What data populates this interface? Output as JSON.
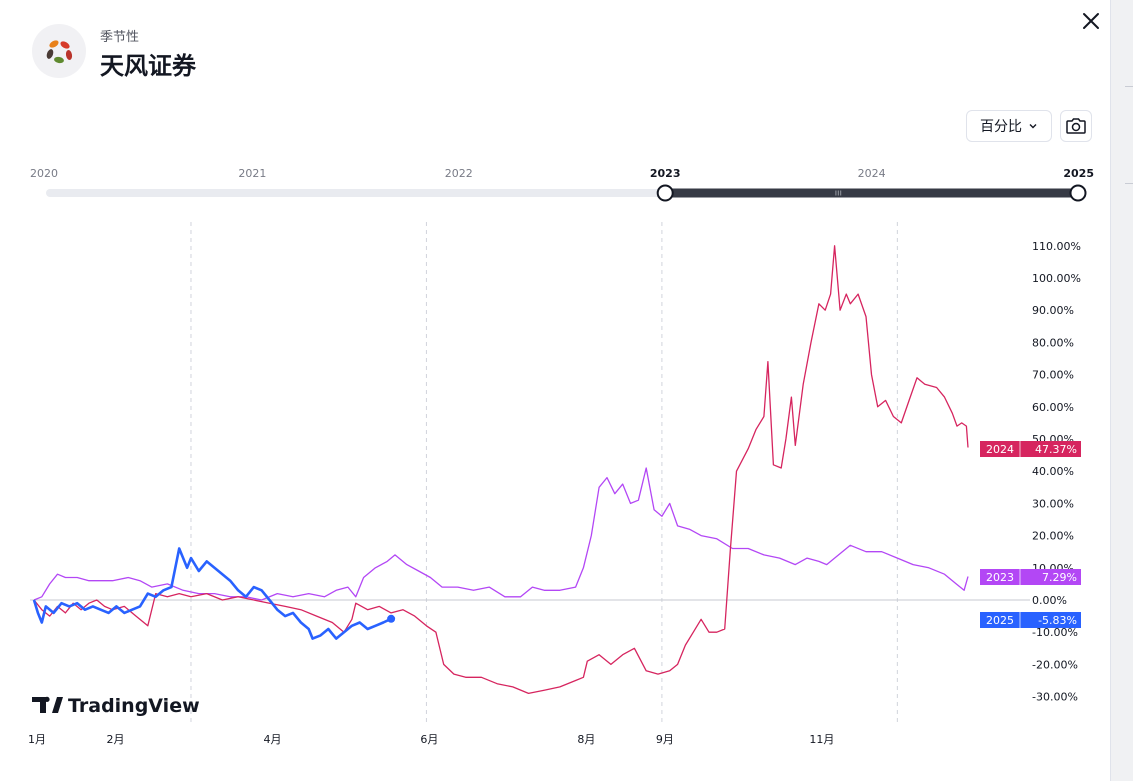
{
  "header": {
    "subtitle": "季节性",
    "title": "天风证券",
    "logo_icon": "flower-logo-icon",
    "close_icon": "close-icon"
  },
  "toolbar": {
    "scale_label": "百分比",
    "scale_icon": "chevron-down-icon",
    "snapshot_icon": "camera-icon"
  },
  "range_selector": {
    "years": [
      "2020",
      "2021",
      "2022",
      "2023",
      "2024",
      "2025"
    ],
    "selected": [
      "2023",
      "2025"
    ]
  },
  "watermark": "TradingView",
  "colors": {
    "2024": "#d6255f",
    "2023": "#b347f5",
    "2025": "#2962ff",
    "grid": "#d1d4dc",
    "slider": "#363a45"
  },
  "chart_data": {
    "type": "line",
    "title": "",
    "xlabel": "",
    "ylabel": "",
    "ylim": [
      -33,
      114
    ],
    "yticks": [
      -30,
      -20,
      -10,
      0,
      10,
      20,
      30,
      40,
      50,
      60,
      70,
      80,
      90,
      100,
      110
    ],
    "ytick_labels": [
      "-30.00%",
      "-20.00%",
      "-10.00%",
      "0.00%",
      "10.00%",
      "20.00%",
      "30.00%",
      "40.00%",
      "50.00%",
      "60.00%",
      "70.00%",
      "80.00%",
      "90.00%",
      "100.00%",
      "110.00%"
    ],
    "xlim": [
      1.0,
      12.9
    ],
    "month_ticks": [
      {
        "x": 1.0,
        "label": "1月"
      },
      {
        "x": 2.0,
        "label": "2月"
      },
      {
        "x": 4.0,
        "label": "4月"
      },
      {
        "x": 6.0,
        "label": "6月"
      },
      {
        "x": 8.0,
        "label": "8月"
      },
      {
        "x": 9.0,
        "label": "9月"
      },
      {
        "x": 11.0,
        "label": "11月"
      }
    ],
    "gridlines_x": [
      3.0,
      6.0,
      9.0,
      12.0
    ],
    "series": [
      {
        "name": "2024",
        "end_label": "47.37%",
        "points": [
          [
            1.0,
            0
          ],
          [
            1.1,
            -3
          ],
          [
            1.2,
            -5
          ],
          [
            1.3,
            -2
          ],
          [
            1.4,
            -4
          ],
          [
            1.5,
            -1
          ],
          [
            1.6,
            -3
          ],
          [
            1.7,
            -1
          ],
          [
            1.8,
            0
          ],
          [
            1.9,
            -2
          ],
          [
            2.0,
            -3
          ],
          [
            2.15,
            -2
          ],
          [
            2.3,
            -5
          ],
          [
            2.45,
            -8
          ],
          [
            2.55,
            2
          ],
          [
            2.7,
            1
          ],
          [
            2.85,
            2
          ],
          [
            3.0,
            1
          ],
          [
            3.2,
            2
          ],
          [
            3.4,
            0
          ],
          [
            3.6,
            1
          ],
          [
            3.8,
            0
          ],
          [
            4.0,
            -1
          ],
          [
            4.2,
            -2
          ],
          [
            4.4,
            -3
          ],
          [
            4.6,
            -5
          ],
          [
            4.8,
            -7
          ],
          [
            4.95,
            -10
          ],
          [
            5.05,
            -6
          ],
          [
            5.1,
            -1
          ],
          [
            5.25,
            -3
          ],
          [
            5.4,
            -2
          ],
          [
            5.55,
            -4
          ],
          [
            5.7,
            -3
          ],
          [
            5.85,
            -5
          ],
          [
            6.0,
            -8
          ],
          [
            6.12,
            -10
          ],
          [
            6.22,
            -20
          ],
          [
            6.35,
            -23
          ],
          [
            6.5,
            -24
          ],
          [
            6.7,
            -24
          ],
          [
            6.9,
            -26
          ],
          [
            7.1,
            -27
          ],
          [
            7.3,
            -29
          ],
          [
            7.5,
            -28
          ],
          [
            7.7,
            -27
          ],
          [
            7.9,
            -25
          ],
          [
            8.0,
            -24
          ],
          [
            8.05,
            -19
          ],
          [
            8.2,
            -17
          ],
          [
            8.35,
            -20
          ],
          [
            8.5,
            -17
          ],
          [
            8.65,
            -15
          ],
          [
            8.8,
            -22
          ],
          [
            8.95,
            -23
          ],
          [
            9.1,
            -22
          ],
          [
            9.2,
            -20
          ],
          [
            9.3,
            -14
          ],
          [
            9.4,
            -10
          ],
          [
            9.5,
            -6
          ],
          [
            9.6,
            -10
          ],
          [
            9.7,
            -10
          ],
          [
            9.8,
            -9
          ],
          [
            9.87,
            15
          ],
          [
            9.95,
            40
          ],
          [
            10.1,
            47
          ],
          [
            10.2,
            53
          ],
          [
            10.3,
            57
          ],
          [
            10.35,
            74
          ],
          [
            10.42,
            42
          ],
          [
            10.52,
            41
          ],
          [
            10.58,
            50
          ],
          [
            10.65,
            63
          ],
          [
            10.7,
            48
          ],
          [
            10.8,
            67
          ],
          [
            10.9,
            80
          ],
          [
            11.0,
            92
          ],
          [
            11.08,
            90
          ],
          [
            11.15,
            95
          ],
          [
            11.2,
            110
          ],
          [
            11.27,
            90
          ],
          [
            11.35,
            95
          ],
          [
            11.4,
            92
          ],
          [
            11.5,
            95
          ],
          [
            11.6,
            88
          ],
          [
            11.67,
            70
          ],
          [
            11.75,
            60
          ],
          [
            11.85,
            62
          ],
          [
            11.95,
            57
          ],
          [
            12.05,
            55
          ],
          [
            12.15,
            62
          ],
          [
            12.25,
            69
          ],
          [
            12.35,
            67
          ],
          [
            12.5,
            66
          ],
          [
            12.6,
            63
          ],
          [
            12.7,
            58
          ],
          [
            12.76,
            54
          ],
          [
            12.82,
            55
          ],
          [
            12.88,
            54
          ],
          [
            12.9,
            47.37
          ]
        ]
      },
      {
        "name": "2023",
        "end_label": "7.29%",
        "points": [
          [
            1.0,
            0
          ],
          [
            1.1,
            1
          ],
          [
            1.2,
            5
          ],
          [
            1.3,
            8
          ],
          [
            1.4,
            7
          ],
          [
            1.55,
            7
          ],
          [
            1.7,
            6
          ],
          [
            1.85,
            6
          ],
          [
            2.0,
            6
          ],
          [
            2.2,
            7
          ],
          [
            2.35,
            6
          ],
          [
            2.5,
            4
          ],
          [
            2.7,
            5
          ],
          [
            2.9,
            3
          ],
          [
            3.1,
            2
          ],
          [
            3.3,
            2
          ],
          [
            3.5,
            1
          ],
          [
            3.7,
            1
          ],
          [
            3.9,
            0
          ],
          [
            4.1,
            2
          ],
          [
            4.3,
            1
          ],
          [
            4.5,
            2
          ],
          [
            4.7,
            1
          ],
          [
            4.85,
            3
          ],
          [
            5.0,
            4
          ],
          [
            5.1,
            1
          ],
          [
            5.2,
            7
          ],
          [
            5.35,
            10
          ],
          [
            5.5,
            12
          ],
          [
            5.6,
            14
          ],
          [
            5.75,
            11
          ],
          [
            5.9,
            9
          ],
          [
            6.05,
            7
          ],
          [
            6.2,
            4
          ],
          [
            6.4,
            4
          ],
          [
            6.6,
            3
          ],
          [
            6.8,
            4
          ],
          [
            7.0,
            1
          ],
          [
            7.2,
            1
          ],
          [
            7.35,
            4
          ],
          [
            7.5,
            3
          ],
          [
            7.7,
            3
          ],
          [
            7.9,
            4
          ],
          [
            8.0,
            10
          ],
          [
            8.1,
            20
          ],
          [
            8.2,
            35
          ],
          [
            8.3,
            38
          ],
          [
            8.4,
            33
          ],
          [
            8.5,
            36
          ],
          [
            8.6,
            30
          ],
          [
            8.7,
            31
          ],
          [
            8.8,
            41
          ],
          [
            8.9,
            28
          ],
          [
            9.0,
            26
          ],
          [
            9.1,
            30
          ],
          [
            9.2,
            23
          ],
          [
            9.35,
            22
          ],
          [
            9.5,
            20
          ],
          [
            9.7,
            19
          ],
          [
            9.9,
            16
          ],
          [
            10.1,
            16
          ],
          [
            10.3,
            14
          ],
          [
            10.5,
            13
          ],
          [
            10.7,
            11
          ],
          [
            10.85,
            13
          ],
          [
            11.0,
            12
          ],
          [
            11.1,
            11
          ],
          [
            11.2,
            13
          ],
          [
            11.4,
            17
          ],
          [
            11.6,
            15
          ],
          [
            11.8,
            15
          ],
          [
            12.0,
            13
          ],
          [
            12.2,
            11
          ],
          [
            12.4,
            10
          ],
          [
            12.6,
            8
          ],
          [
            12.75,
            5
          ],
          [
            12.85,
            3
          ],
          [
            12.9,
            7.29
          ]
        ]
      },
      {
        "name": "2025",
        "end_label": "-5.83%",
        "points": [
          [
            1.0,
            0
          ],
          [
            1.05,
            -4
          ],
          [
            1.1,
            -7
          ],
          [
            1.15,
            -2
          ],
          [
            1.25,
            -4
          ],
          [
            1.35,
            -1
          ],
          [
            1.45,
            -2
          ],
          [
            1.55,
            -1
          ],
          [
            1.65,
            -3
          ],
          [
            1.75,
            -2
          ],
          [
            1.85,
            -3
          ],
          [
            1.95,
            -4
          ],
          [
            2.05,
            -2
          ],
          [
            2.15,
            -4
          ],
          [
            2.25,
            -3
          ],
          [
            2.35,
            -2
          ],
          [
            2.45,
            2
          ],
          [
            2.55,
            1
          ],
          [
            2.65,
            3
          ],
          [
            2.75,
            4
          ],
          [
            2.85,
            16
          ],
          [
            2.95,
            10
          ],
          [
            3.0,
            13
          ],
          [
            3.1,
            9
          ],
          [
            3.2,
            12
          ],
          [
            3.35,
            9
          ],
          [
            3.5,
            6
          ],
          [
            3.6,
            3
          ],
          [
            3.7,
            1
          ],
          [
            3.8,
            4
          ],
          [
            3.9,
            3
          ],
          [
            4.0,
            0
          ],
          [
            4.1,
            -3
          ],
          [
            4.2,
            -5
          ],
          [
            4.3,
            -4
          ],
          [
            4.4,
            -7
          ],
          [
            4.5,
            -9
          ],
          [
            4.55,
            -12
          ],
          [
            4.65,
            -11
          ],
          [
            4.75,
            -9
          ],
          [
            4.85,
            -12
          ],
          [
            4.95,
            -10
          ],
          [
            5.05,
            -8
          ],
          [
            5.15,
            -7
          ],
          [
            5.25,
            -9
          ],
          [
            5.35,
            -8
          ],
          [
            5.45,
            -7
          ],
          [
            5.55,
            -5.83
          ]
        ]
      }
    ]
  }
}
